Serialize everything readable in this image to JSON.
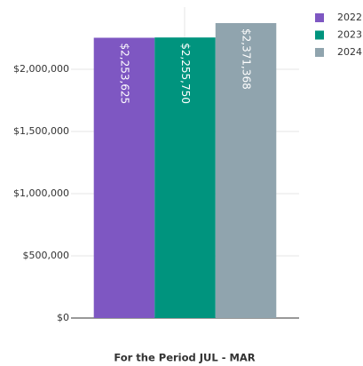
{
  "chart_data": {
    "type": "bar",
    "title": "For the Period JUL - MAR",
    "categories": [
      null
    ],
    "series": [
      {
        "name": "2022",
        "color": "#7e57c2",
        "values": [
          2253625
        ],
        "value_labels": [
          "$2,253,625"
        ]
      },
      {
        "name": "2023",
        "color": "#00947e",
        "values": [
          2255750
        ],
        "value_labels": [
          "$2,255,750"
        ]
      },
      {
        "name": "2024",
        "color": "#90a4ae",
        "values": [
          2371368
        ],
        "value_labels": [
          "$2,371,368"
        ]
      }
    ],
    "ylim": [
      0,
      2500000
    ],
    "yticks": [
      {
        "value": 0,
        "label": "$0"
      },
      {
        "value": 500000,
        "label": "$500,000"
      },
      {
        "value": 1000000,
        "label": "$1,000,000"
      },
      {
        "value": 1500000,
        "label": "$1,500,000"
      },
      {
        "value": 2000000,
        "label": "$2,000,000"
      }
    ],
    "grid": true,
    "legend": "right"
  }
}
